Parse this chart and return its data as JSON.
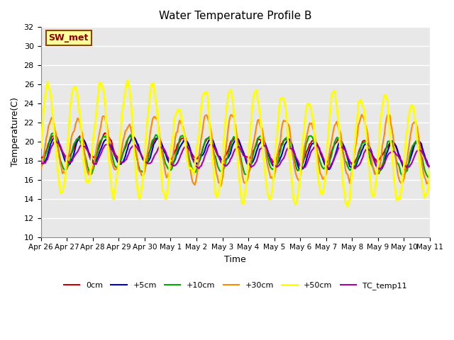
{
  "title": "Water Temperature Profile B",
  "xlabel": "Time",
  "ylabel": "Temperature(C)",
  "ylim": [
    10,
    32
  ],
  "yticks": [
    10,
    12,
    14,
    16,
    18,
    20,
    22,
    24,
    26,
    28,
    30,
    32
  ],
  "background_color": "#ffffff",
  "plot_bg_color": "#e8e8e8",
  "grid_color": "#ffffff",
  "annotation": "SW_met",
  "annotation_color": "#8b0000",
  "annotation_bg": "#ffff99",
  "annotation_border": "#8b4513",
  "series": {
    "0cm": {
      "color": "#cc0000",
      "lw": 1.5
    },
    "+5cm": {
      "color": "#0000cc",
      "lw": 1.5
    },
    "+10cm": {
      "color": "#00aa00",
      "lw": 1.5
    },
    "+30cm": {
      "color": "#ff8800",
      "lw": 1.5
    },
    "+50cm": {
      "color": "#ffff00",
      "lw": 2.0
    },
    "TC_temp11": {
      "color": "#aa00aa",
      "lw": 1.5
    }
  },
  "xtick_labels": [
    "Apr 26",
    "Apr 27",
    "Apr 28",
    "Apr 29",
    "Apr 30",
    "May 1",
    "May 2",
    "May 3",
    "May 4",
    "May 5",
    "May 6",
    "May 7",
    "May 8",
    "May 9",
    "May 10",
    "May 11"
  ],
  "n_days": 15,
  "points_per_day": 24
}
